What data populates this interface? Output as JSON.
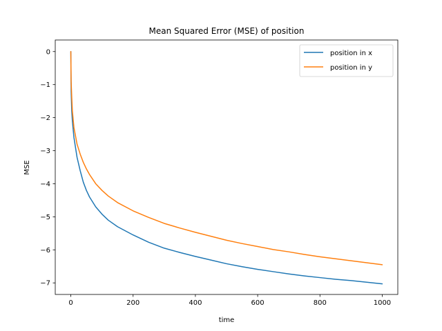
{
  "chart_data": {
    "type": "line",
    "title": "Mean Squared Error (MSE) of position",
    "xlabel": "time",
    "ylabel": "MSE",
    "xlim": [
      -50,
      1050
    ],
    "ylim": [
      -7.35,
      0.35
    ],
    "xticks": [
      0,
      200,
      400,
      600,
      800,
      1000
    ],
    "yticks": [
      0,
      -1,
      -2,
      -3,
      -4,
      -5,
      -6,
      -7
    ],
    "xtick_labels": [
      "0",
      "200",
      "400",
      "600",
      "800",
      "1000"
    ],
    "ytick_labels": [
      "0",
      "−1",
      "−2",
      "−3",
      "−4",
      "−5",
      "−6",
      "−7"
    ],
    "grid": false,
    "legend_position": "top-right",
    "series": [
      {
        "name": "position in x",
        "color": "#1f77b4",
        "points": [
          [
            0,
            0
          ],
          [
            1,
            -1.2
          ],
          [
            3,
            -1.8
          ],
          [
            5,
            -2.1
          ],
          [
            10,
            -2.6
          ],
          [
            20,
            -3.2
          ],
          [
            30,
            -3.6
          ],
          [
            40,
            -3.95
          ],
          [
            50,
            -4.2
          ],
          [
            60,
            -4.4
          ],
          [
            80,
            -4.7
          ],
          [
            100,
            -4.92
          ],
          [
            120,
            -5.1
          ],
          [
            150,
            -5.3
          ],
          [
            200,
            -5.55
          ],
          [
            250,
            -5.77
          ],
          [
            300,
            -5.95
          ],
          [
            350,
            -6.08
          ],
          [
            400,
            -6.2
          ],
          [
            450,
            -6.31
          ],
          [
            500,
            -6.42
          ],
          [
            550,
            -6.51
          ],
          [
            600,
            -6.59
          ],
          [
            650,
            -6.66
          ],
          [
            700,
            -6.73
          ],
          [
            750,
            -6.79
          ],
          [
            800,
            -6.84
          ],
          [
            850,
            -6.89
          ],
          [
            900,
            -6.93
          ],
          [
            950,
            -6.98
          ],
          [
            1000,
            -7.03
          ]
        ]
      },
      {
        "name": "position in y",
        "color": "#ff7f0e",
        "points": [
          [
            0,
            0
          ],
          [
            1,
            -0.9
          ],
          [
            3,
            -1.4
          ],
          [
            5,
            -1.8
          ],
          [
            10,
            -2.3
          ],
          [
            20,
            -2.8
          ],
          [
            30,
            -3.1
          ],
          [
            40,
            -3.35
          ],
          [
            50,
            -3.55
          ],
          [
            60,
            -3.72
          ],
          [
            80,
            -4.0
          ],
          [
            100,
            -4.2
          ],
          [
            120,
            -4.37
          ],
          [
            150,
            -4.57
          ],
          [
            200,
            -4.82
          ],
          [
            250,
            -5.02
          ],
          [
            300,
            -5.2
          ],
          [
            350,
            -5.34
          ],
          [
            400,
            -5.47
          ],
          [
            450,
            -5.59
          ],
          [
            500,
            -5.71
          ],
          [
            550,
            -5.81
          ],
          [
            600,
            -5.9
          ],
          [
            650,
            -5.99
          ],
          [
            700,
            -6.06
          ],
          [
            750,
            -6.14
          ],
          [
            800,
            -6.21
          ],
          [
            850,
            -6.27
          ],
          [
            900,
            -6.33
          ],
          [
            950,
            -6.39
          ],
          [
            1000,
            -6.45
          ]
        ]
      }
    ]
  }
}
